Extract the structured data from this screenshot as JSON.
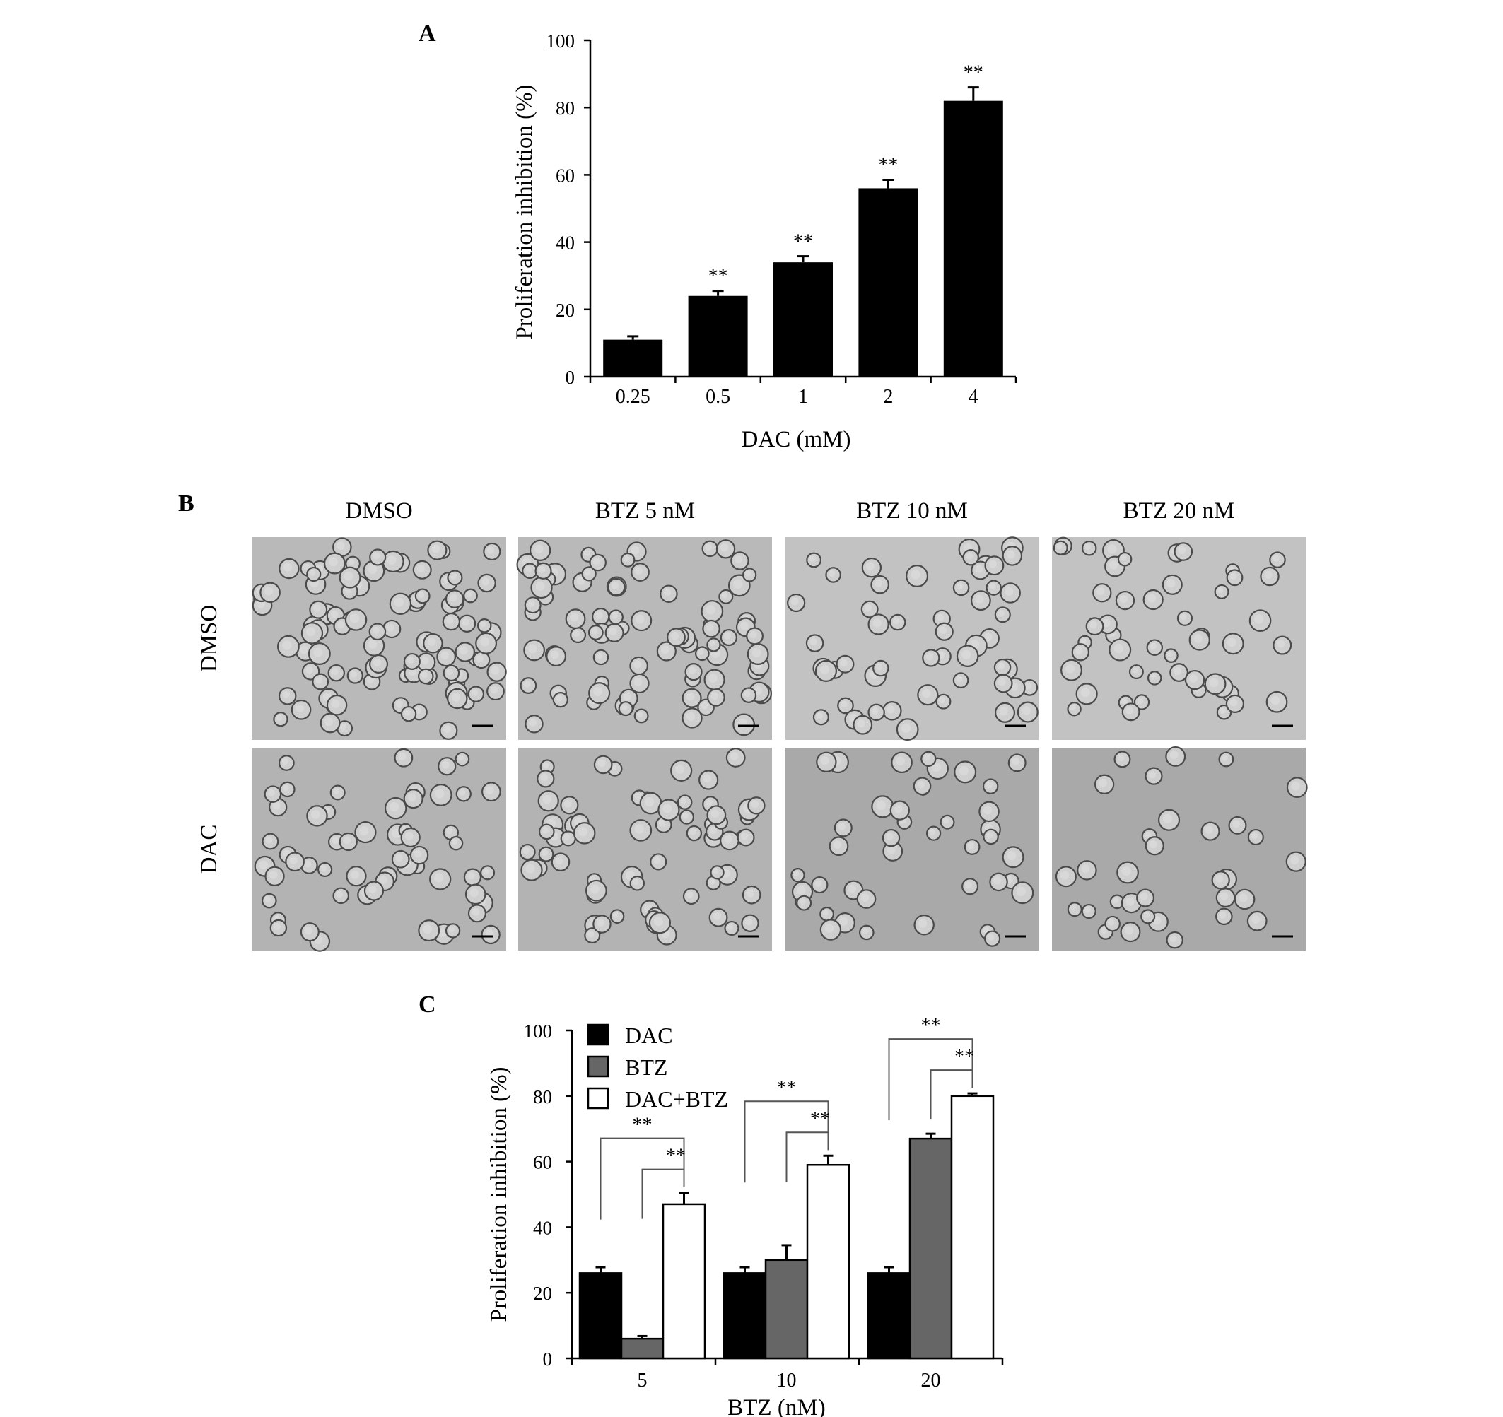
{
  "panels": {
    "a": "A",
    "b": "B",
    "c": "C"
  },
  "chart_data": [
    {
      "panel": "A",
      "type": "bar",
      "categories": [
        "0.25",
        "0.5",
        "1",
        "2",
        "4"
      ],
      "values": [
        11,
        24,
        34,
        56,
        82
      ],
      "errors": [
        1,
        1.5,
        1.8,
        2.5,
        4
      ],
      "significance": [
        "",
        "**",
        "**",
        "**",
        "**"
      ],
      "xlabel": "DAC (mM)",
      "ylabel": "Proliferation inhibition (%)",
      "ylim": [
        0,
        100
      ],
      "yticks": [
        "0",
        "20",
        "40",
        "60",
        "80",
        "100"
      ],
      "colors": {
        "bar": "#000000"
      }
    },
    {
      "panel": "C",
      "type": "bar",
      "categories": [
        "5",
        "10",
        "20"
      ],
      "series": [
        {
          "name": "DAC",
          "values": [
            26,
            26,
            26
          ],
          "errors": [
            1.8,
            1.8,
            1.8
          ],
          "color": "#000000"
        },
        {
          "name": "BTZ",
          "values": [
            6,
            30,
            67
          ],
          "errors": [
            0.8,
            4.5,
            1.5
          ],
          "color": "#666666"
        },
        {
          "name": "DAC+BTZ",
          "values": [
            47,
            59,
            80
          ],
          "errors": [
            3.5,
            2.8,
            0.8
          ],
          "color": "#ffffff"
        }
      ],
      "brackets": [
        {
          "group": 0,
          "from": "DAC",
          "to": "DAC+BTZ",
          "label": "**"
        },
        {
          "group": 0,
          "from": "BTZ",
          "to": "DAC+BTZ",
          "label": "**"
        },
        {
          "group": 1,
          "from": "DAC",
          "to": "DAC+BTZ",
          "label": "**"
        },
        {
          "group": 1,
          "from": "BTZ",
          "to": "DAC+BTZ",
          "label": "**"
        },
        {
          "group": 2,
          "from": "DAC",
          "to": "DAC+BTZ",
          "label": "**"
        },
        {
          "group": 2,
          "from": "BTZ",
          "to": "DAC+BTZ",
          "label": "**"
        }
      ],
      "xlabel": "BTZ (nM)",
      "ylabel": "Proliferation inhibition (%)",
      "ylim": [
        0,
        100
      ],
      "yticks": [
        "0",
        "20",
        "40",
        "60",
        "80",
        "100"
      ],
      "legend": "top-left"
    }
  ],
  "micrographs": {
    "column_labels": [
      "DMSO",
      "BTZ 5 nM",
      "BTZ 10 nM",
      "BTZ 20 nM"
    ],
    "row_labels": [
      "DMSO",
      "DAC"
    ],
    "cell_density": [
      [
        1.0,
        0.85,
        0.55,
        0.5
      ],
      [
        0.6,
        0.7,
        0.45,
        0.35
      ]
    ]
  }
}
